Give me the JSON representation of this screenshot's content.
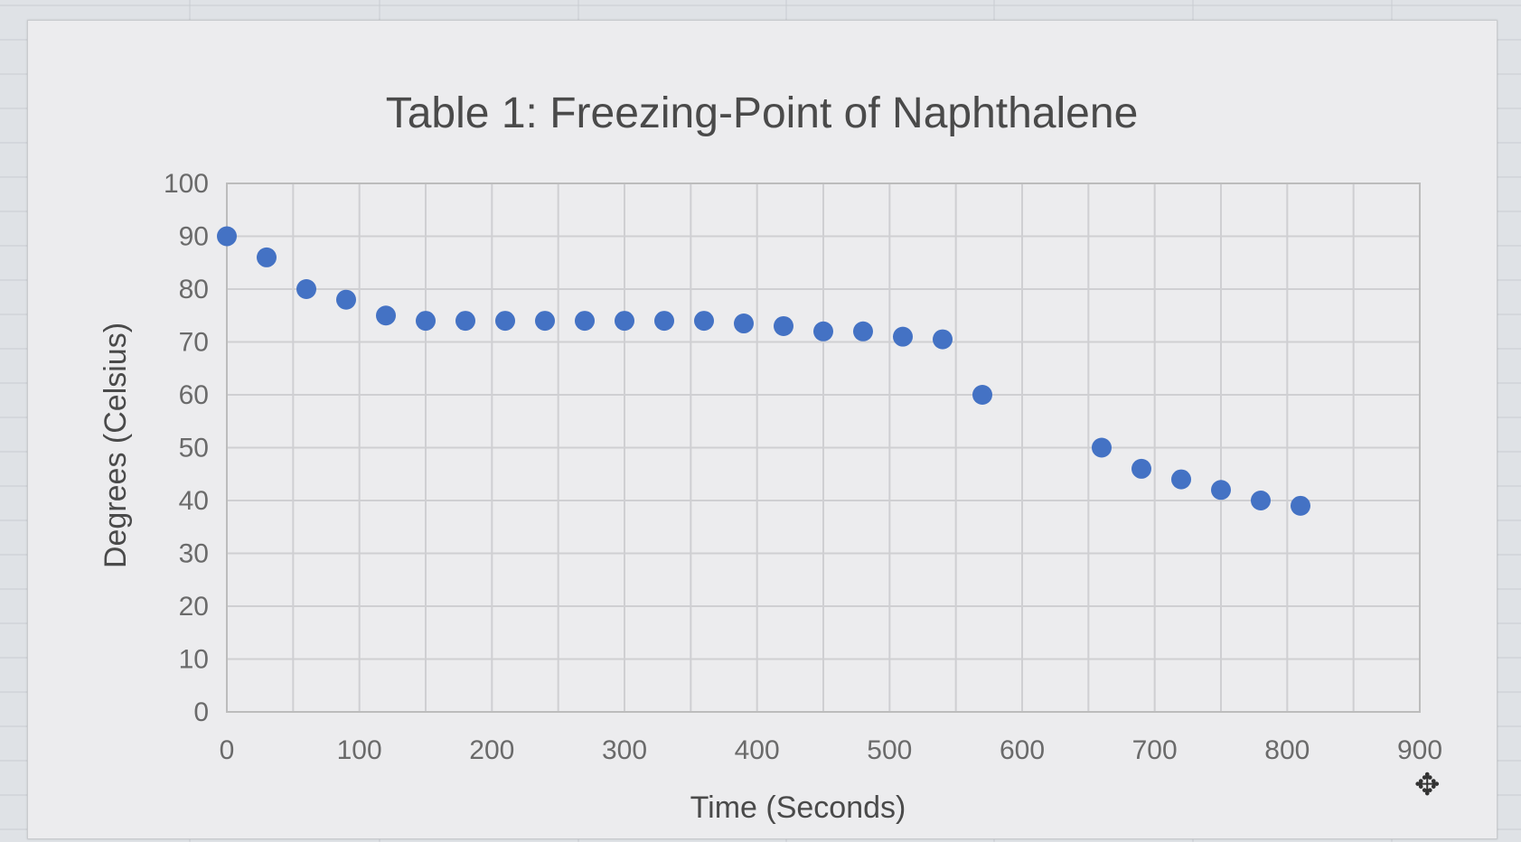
{
  "chart_data": {
    "type": "scatter",
    "title": "Table 1: Freezing-Point of Naphthalene",
    "xlabel": "Time (Seconds)",
    "ylabel": "Degrees (Celsius)",
    "xlim": [
      0,
      900
    ],
    "ylim": [
      0,
      100
    ],
    "xticks": [
      "0",
      "100",
      "200",
      "300",
      "400",
      "500",
      "600",
      "700",
      "800",
      "900"
    ],
    "yticks": [
      "0",
      "10",
      "20",
      "30",
      "40",
      "50",
      "60",
      "70",
      "80",
      "90",
      "100"
    ],
    "x_minor_step": 50,
    "grid": true,
    "legend": "none",
    "marker_color": "#4472c4",
    "points": [
      {
        "x": 0,
        "y": 90
      },
      {
        "x": 30,
        "y": 86
      },
      {
        "x": 60,
        "y": 80
      },
      {
        "x": 90,
        "y": 78
      },
      {
        "x": 120,
        "y": 75
      },
      {
        "x": 150,
        "y": 74
      },
      {
        "x": 180,
        "y": 74
      },
      {
        "x": 210,
        "y": 74
      },
      {
        "x": 240,
        "y": 74
      },
      {
        "x": 270,
        "y": 74
      },
      {
        "x": 300,
        "y": 74
      },
      {
        "x": 330,
        "y": 74
      },
      {
        "x": 360,
        "y": 74
      },
      {
        "x": 390,
        "y": 73.5
      },
      {
        "x": 420,
        "y": 73
      },
      {
        "x": 450,
        "y": 72
      },
      {
        "x": 480,
        "y": 72
      },
      {
        "x": 510,
        "y": 71
      },
      {
        "x": 540,
        "y": 70.5
      },
      {
        "x": 570,
        "y": 60
      },
      {
        "x": 660,
        "y": 50
      },
      {
        "x": 690,
        "y": 46
      },
      {
        "x": 720,
        "y": 44
      },
      {
        "x": 750,
        "y": 42
      },
      {
        "x": 780,
        "y": 40
      },
      {
        "x": 810,
        "y": 39
      }
    ]
  },
  "cursor": {
    "icon": "move-resize-cursor-icon"
  }
}
